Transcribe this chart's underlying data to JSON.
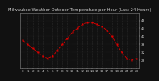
{
  "title": "Milwaukee Weather Outdoor Temperature per Hour (Last 24 Hours)",
  "hours": [
    0,
    1,
    2,
    3,
    4,
    5,
    6,
    7,
    8,
    9,
    10,
    11,
    12,
    13,
    14,
    15,
    16,
    17,
    18,
    19,
    20,
    21,
    22,
    23
  ],
  "temps": [
    38,
    36,
    34,
    32,
    30,
    29,
    30,
    33,
    36,
    39,
    42,
    44,
    46,
    47,
    47,
    46,
    45,
    43,
    40,
    36,
    32,
    29,
    28,
    29
  ],
  "line_color": "#dd0000",
  "marker": "s",
  "marker_size": 1.2,
  "line_style": "--",
  "line_width": 0.6,
  "ylim": [
    24,
    52
  ],
  "ytick_positions": [
    28,
    32,
    36,
    40,
    44,
    48
  ],
  "ytick_labels": [
    "28",
    "32",
    "36",
    "40",
    "44",
    "48"
  ],
  "bg_color": "#111111",
  "plot_bg_color": "#111111",
  "grid_color": "#444444",
  "text_color": "#cccccc",
  "title_fontsize": 3.8,
  "tick_fontsize": 3.0,
  "spine_color": "#888888"
}
